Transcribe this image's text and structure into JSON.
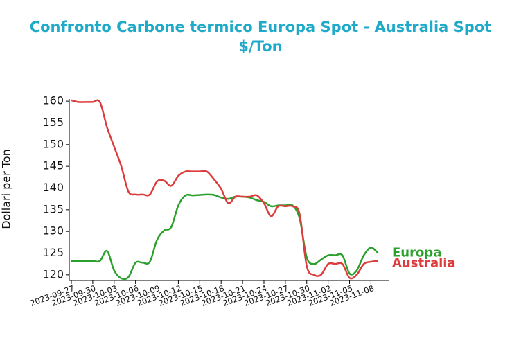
{
  "chart_data": {
    "type": "line",
    "title": "Confronto Carbone termico Europa Spot - Australia Spot",
    "subtitle": "$/Ton",
    "y_label": "Dollari per Ton",
    "x": [
      "2023-09-27",
      "2023-09-28",
      "2023-09-29",
      "2023-09-30",
      "2023-10-01",
      "2023-10-02",
      "2023-10-03",
      "2023-10-04",
      "2023-10-05",
      "2023-10-06",
      "2023-10-07",
      "2023-10-08",
      "2023-10-09",
      "2023-10-10",
      "2023-10-11",
      "2023-10-12",
      "2023-10-13",
      "2023-10-14",
      "2023-10-15",
      "2023-10-16",
      "2023-10-17",
      "2023-10-18",
      "2023-10-19",
      "2023-10-20",
      "2023-10-21",
      "2023-10-22",
      "2023-10-23",
      "2023-10-24",
      "2023-10-25",
      "2023-10-26",
      "2023-10-27",
      "2023-10-28",
      "2023-10-29",
      "2023-10-30",
      "2023-10-31",
      "2023-11-01",
      "2023-11-02",
      "2023-11-03",
      "2023-11-04",
      "2023-11-05",
      "2023-11-06",
      "2023-11-07",
      "2023-11-08",
      "2023-11-09"
    ],
    "series": [
      {
        "name": "Europa",
        "color": "#2ca02c",
        "values": [
          123.2,
          123.2,
          123.2,
          123.2,
          123.2,
          125.5,
          121,
          119.2,
          119.5,
          122.8,
          122.8,
          123,
          128,
          130.2,
          131,
          136,
          138.3,
          138.3,
          138.4,
          138.5,
          138.4,
          137.8,
          137.5,
          138,
          138,
          137.8,
          137.2,
          136.8,
          135.8,
          136,
          136,
          136,
          133,
          124,
          122.5,
          123.5,
          124.5,
          124.5,
          124.5,
          120.3,
          121,
          124.5,
          126.3,
          125
        ]
      },
      {
        "name": "Australia",
        "color": "#dc3c3c",
        "values": [
          160.2,
          159.8,
          159.8,
          159.8,
          159.8,
          154,
          149.5,
          145,
          139.2,
          138.5,
          138.5,
          138.5,
          141.5,
          141.7,
          140.5,
          142.8,
          143.8,
          143.8,
          143.8,
          143.8,
          142,
          139.8,
          136.5,
          138,
          138,
          138,
          138.3,
          136.5,
          133.5,
          135.8,
          135.8,
          135.8,
          134,
          122,
          120,
          120,
          122.5,
          122.5,
          122.5,
          119.3,
          120,
          122.5,
          123,
          123.2
        ]
      }
    ],
    "xlim": [
      "2023-09-27",
      "2023-11-10"
    ],
    "xticks": [
      "2023-09-27",
      "2023-09-30",
      "2023-10-03",
      "2023-10-06",
      "2023-10-09",
      "2023-10-12",
      "2023-10-15",
      "2023-10-18",
      "2023-10-21",
      "2023-10-24",
      "2023-10-27",
      "2023-10-30",
      "2023-11-02",
      "2023-11-05",
      "2023-11-08"
    ],
    "ylim": [
      118.7,
      160.5
    ],
    "yticks": [
      120,
      125,
      130,
      135,
      140,
      145,
      150,
      155,
      160
    ],
    "grid": false
  }
}
